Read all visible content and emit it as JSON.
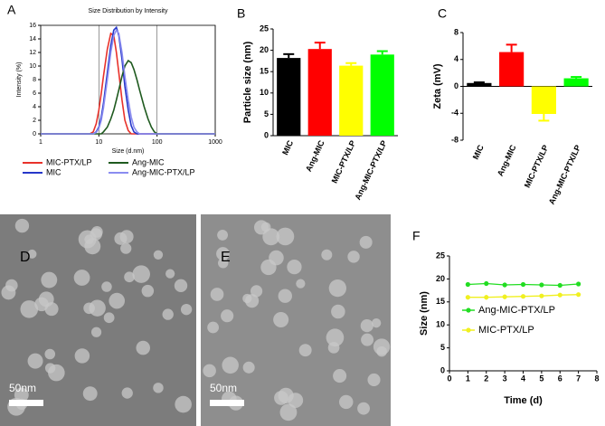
{
  "chart_data": [
    {
      "type": "line",
      "panel": "A",
      "title": "Size Distribution by Intensity",
      "x_label": "Size (d.nm)",
      "y_label": "Intensity (%)",
      "log_x": true,
      "grid": true,
      "legend": "bottom",
      "x": [
        1,
        6,
        7,
        8,
        9,
        10,
        11,
        12,
        14,
        16,
        18,
        20,
        22,
        25,
        28,
        32,
        36,
        40,
        45,
        50,
        60,
        70,
        80,
        90,
        100,
        1000
      ],
      "xlim": [
        1,
        1000
      ],
      "xticks": [
        1,
        10,
        100,
        1000
      ],
      "ylim": [
        0,
        16
      ],
      "yticks": [
        0,
        2,
        4,
        6,
        8,
        10,
        12,
        14,
        16
      ],
      "series": [
        {
          "name": "MIC-PTX/LP",
          "color": "#e8322b",
          "values": [
            0,
            0,
            0,
            0.3,
            1.5,
            3.5,
            6,
            8.5,
            12.5,
            14.8,
            14.5,
            12,
            9,
            5,
            2,
            0.5,
            0,
            0,
            0,
            0,
            0,
            0,
            0,
            0,
            0,
            0
          ]
        },
        {
          "name": "MIC",
          "color": "#2637c9",
          "values": [
            0,
            0,
            0,
            0,
            0.3,
            1,
            2.5,
            4.5,
            9,
            13,
            15.3,
            15.7,
            14.5,
            11,
            7,
            3.5,
            1.2,
            0.3,
            0,
            0,
            0,
            0,
            0,
            0,
            0,
            0
          ]
        },
        {
          "name": "Ang-MIC",
          "color": "#1f5a1f",
          "values": [
            0,
            0,
            0,
            0,
            0,
            0,
            0,
            0.3,
            1,
            2.2,
            3.5,
            5,
            6.5,
            8.5,
            10,
            10.8,
            10.5,
            9.5,
            8,
            6.5,
            4,
            2.2,
            1,
            0.3,
            0,
            0
          ]
        },
        {
          "name": "Ang-MIC-PTX/LP",
          "color": "#8a8cf0",
          "values": [
            0,
            0,
            0,
            0,
            0.2,
            0.8,
            2,
            3.8,
            8,
            12,
            14.5,
            15.3,
            14.8,
            12,
            8.5,
            5,
            2.5,
            1,
            0.3,
            0,
            0,
            0,
            0,
            0,
            0,
            0
          ]
        }
      ]
    },
    {
      "type": "bar",
      "panel": "B",
      "y_label": "Particle size (nm)",
      "categories": [
        "MIC",
        "Ang-MIC",
        "MIC-PTX/LP",
        "Ang-MIC-PTX/LP"
      ],
      "values": [
        18.2,
        20.3,
        16.4,
        19.0
      ],
      "errors": [
        0.9,
        1.5,
        0.6,
        0.8
      ],
      "colors": [
        "#000000",
        "#ff0000",
        "#ffff00",
        "#00ff00"
      ],
      "ylim": [
        0,
        25
      ],
      "yticks": [
        0,
        5,
        10,
        15,
        20,
        25
      ]
    },
    {
      "type": "bar",
      "panel": "C",
      "y_label": "Zeta (mV)",
      "categories": [
        "MIC",
        "Ang-MIC",
        "MIC-PTX/LP",
        "Ang-MIC-PTX/LP"
      ],
      "values": [
        0.5,
        5.1,
        -4.1,
        1.2
      ],
      "errors": [
        0.1,
        1.1,
        1.0,
        0.2
      ],
      "colors": [
        "#000000",
        "#ff0000",
        "#ffff00",
        "#00ff00"
      ],
      "ylim": [
        -8,
        8
      ],
      "yticks": [
        -8,
        -4,
        0,
        4,
        8
      ]
    },
    {
      "type": "line",
      "panel": "F",
      "x_label": "Time (d)",
      "y_label": "Size (nm)",
      "legend": "center right",
      "markers": true,
      "x": [
        1,
        2,
        3,
        4,
        5,
        6,
        7
      ],
      "xlim": [
        0,
        8
      ],
      "xticks": [
        0,
        1,
        2,
        3,
        4,
        5,
        6,
        7,
        8
      ],
      "ylim": [
        0,
        25
      ],
      "yticks": [
        0,
        5,
        10,
        15,
        20,
        25
      ],
      "series": [
        {
          "name": "Ang-MIC-PTX/LP",
          "color": "#22dd22",
          "values": [
            18.8,
            19.0,
            18.7,
            18.8,
            18.7,
            18.6,
            18.9
          ],
          "errors": [
            0.3,
            0.3,
            0.5,
            0.3,
            0.4,
            0.3,
            0.3
          ]
        },
        {
          "name": "MIC-PTX/LP",
          "color": "#f0f020",
          "values": [
            16.0,
            16.0,
            16.1,
            16.2,
            16.3,
            16.5,
            16.6
          ],
          "errors": [
            0.4,
            0.5,
            0.5,
            0.3,
            0.3,
            0.3,
            0.3
          ]
        }
      ]
    }
  ],
  "images": [
    {
      "panel": "D",
      "scale_bar": "50nm"
    },
    {
      "panel": "E",
      "scale_bar": "50nm"
    }
  ]
}
